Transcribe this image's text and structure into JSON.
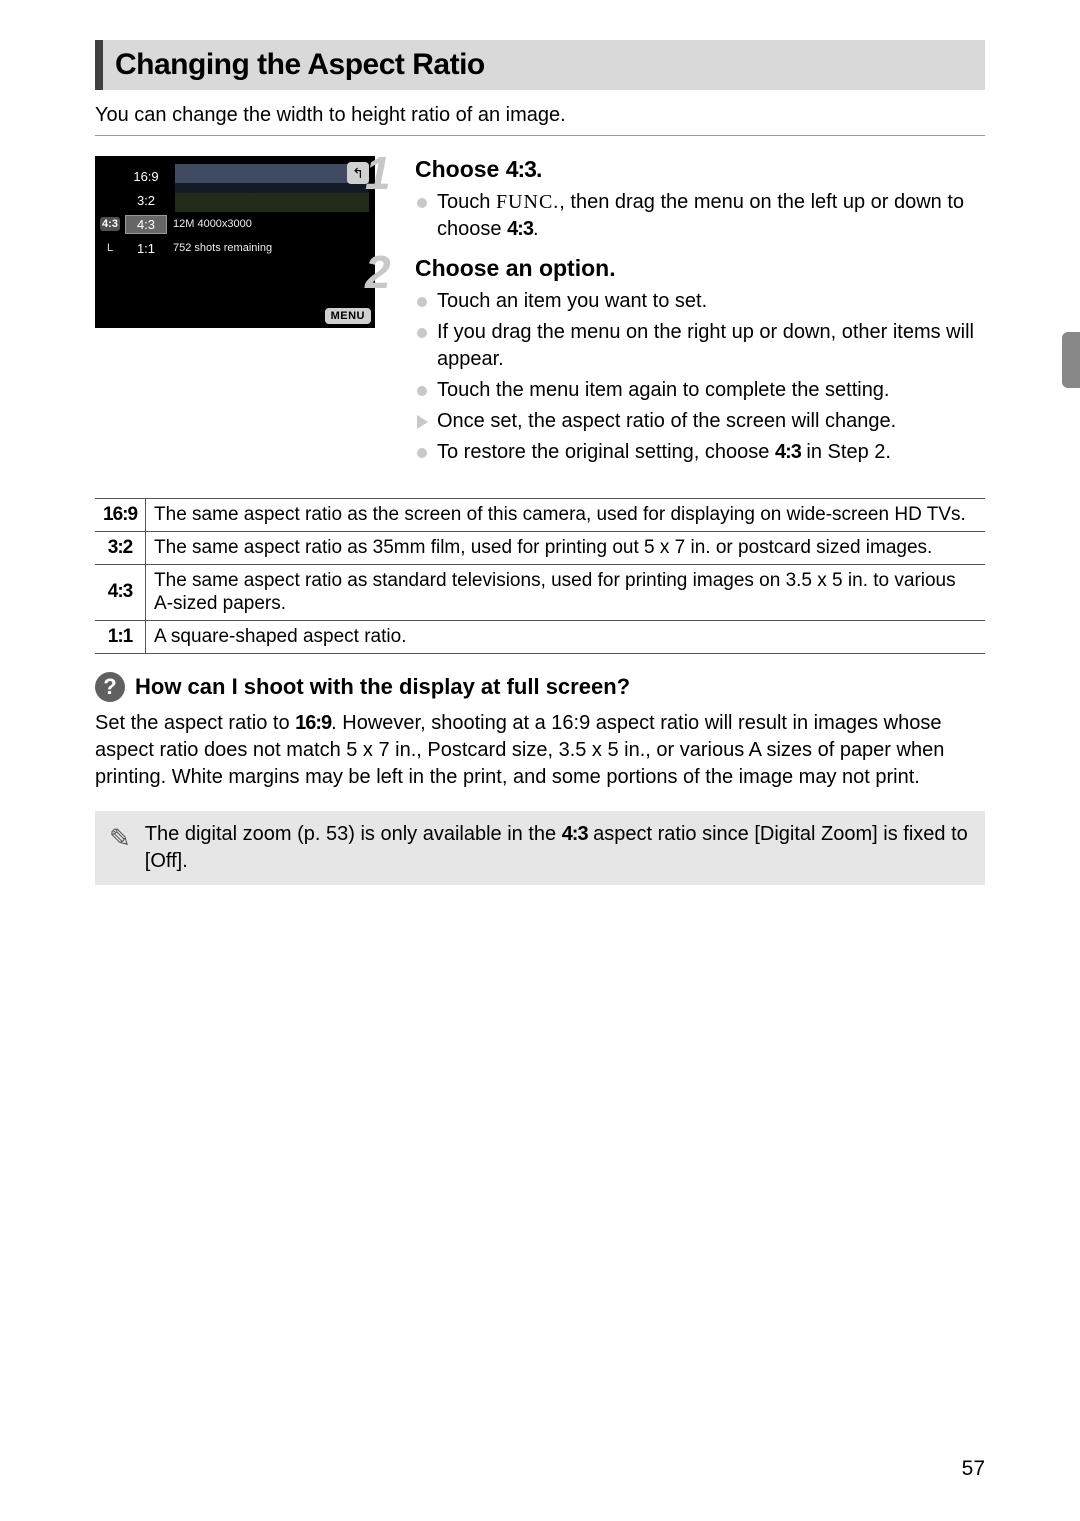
{
  "page": {
    "title": "Changing the Aspect Ratio",
    "intro": "You can change the width to height ratio of an image.",
    "page_number": "57"
  },
  "screenshot": {
    "back_glyph": "↰",
    "menu_label": "MENU",
    "left_icons": [
      "",
      "",
      "4:3",
      "L",
      ""
    ],
    "rows": [
      {
        "ratio": "16:9",
        "rest": ""
      },
      {
        "ratio": "3:2",
        "rest": ""
      },
      {
        "ratio": "4:3",
        "rest": "12M 4000x3000"
      },
      {
        "ratio": "1:1",
        "rest": "752 shots remaining"
      },
      {
        "ratio": "",
        "rest": ""
      }
    ],
    "selected_index": 2
  },
  "steps": [
    {
      "num": "1",
      "title_prefix": "Choose ",
      "title_ratio": "4:3",
      "title_suffix": ".",
      "bullets": [
        {
          "type": "dot",
          "parts": [
            "Touch ",
            "FUNC.",
            ", then drag the menu on the left up or down to choose ",
            "4:3",
            "."
          ]
        }
      ]
    },
    {
      "num": "2",
      "title_prefix": "Choose an option.",
      "title_ratio": "",
      "title_suffix": "",
      "bullets": [
        {
          "type": "dot",
          "parts": [
            "Touch an item you want to set."
          ]
        },
        {
          "type": "dot",
          "parts": [
            "If you drag the menu on the right up or down, other items will appear."
          ]
        },
        {
          "type": "dot",
          "parts": [
            "Touch the menu item again to complete the setting."
          ]
        },
        {
          "type": "arrow",
          "parts": [
            "Once set, the aspect ratio of the screen will change."
          ]
        },
        {
          "type": "dot",
          "parts": [
            "To restore the original setting, choose ",
            "4:3",
            " in Step 2."
          ]
        }
      ]
    }
  ],
  "ratio_table": [
    {
      "ratio": "16:9",
      "desc": "The same aspect ratio as the screen of this camera, used for displaying on wide-screen HD TVs."
    },
    {
      "ratio": "3:2",
      "desc": "The same aspect ratio as 35mm film, used for printing out 5 x 7 in. or postcard sized images."
    },
    {
      "ratio": "4:3",
      "desc": "The same aspect ratio as standard televisions, used for printing images on 3.5 x 5 in. to various A-sized papers."
    },
    {
      "ratio": "1:1",
      "desc": "A square-shaped aspect ratio."
    }
  ],
  "tip": {
    "icon": "?",
    "title": "How can I shoot with the display at full screen?",
    "body_parts": [
      "Set the aspect ratio to ",
      "16:9",
      ". However, shooting at a 16:9 aspect ratio will result in images whose aspect ratio does not match 5 x 7 in., Postcard size, 3.5 x 5 in., or various A sizes of paper when printing. White margins may be left in the print, and some portions of the image may not print."
    ]
  },
  "note": {
    "icon": "✎",
    "parts": [
      "The digital zoom (p. 53) is only available in the ",
      "4:3",
      " aspect ratio since [Digital Zoom] is fixed to [Off]."
    ]
  },
  "colors": {
    "title_bg": "#d9d9d9",
    "title_border": "#404040",
    "step_num": "#c8c8c8",
    "note_bg": "#e6e6e6",
    "tip_icon_bg": "#606060",
    "thumb_tab": "#888888"
  }
}
